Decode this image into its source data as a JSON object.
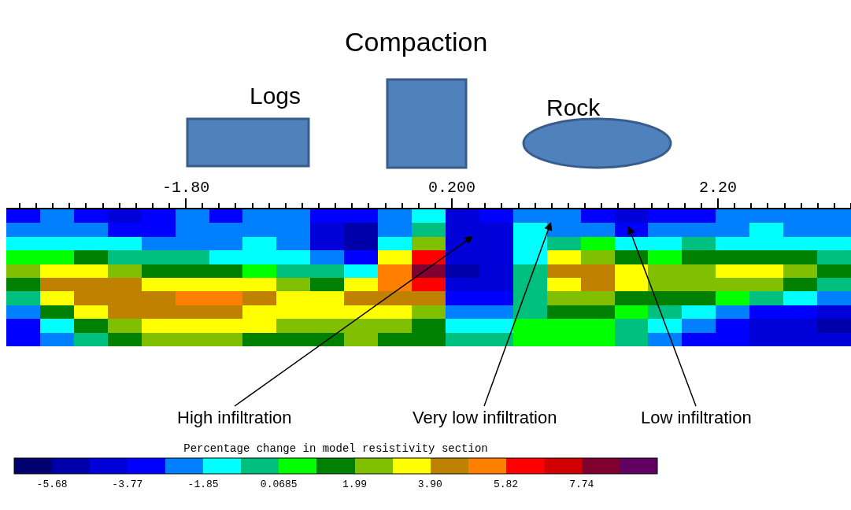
{
  "chart_data": {
    "type": "heatmap",
    "title": "Compaction",
    "annotations": [
      "Logs",
      "Rock",
      "High infiltration",
      "Very low infiltration",
      "Low infiltration"
    ],
    "clabel": "Percentage change in model resistivity section",
    "categories": [
      null,
      null,
      null,
      null,
      null,
      null,
      null,
      null,
      null,
      null,
      null,
      null,
      null,
      null,
      null,
      null,
      null,
      null,
      null,
      null,
      null,
      null,
      null,
      null,
      null
    ],
    "y_categories": [
      null,
      null,
      null,
      null,
      null,
      null,
      null,
      null,
      null,
      null
    ],
    "x2lim": [
      -3.15,
      3.2
    ],
    "x2ticks": [
      {
        "value": -3.05,
        "label": null
      },
      {
        "value": -2.925,
        "label": null
      },
      {
        "value": -2.8,
        "label": null
      },
      {
        "value": -2.675,
        "label": null
      },
      {
        "value": -2.55,
        "label": null
      },
      {
        "value": -2.425,
        "label": null
      },
      {
        "value": -2.3,
        "label": null
      },
      {
        "value": -2.175,
        "label": null
      },
      {
        "value": -2.05,
        "label": null
      },
      {
        "value": -1.925,
        "label": null
      },
      {
        "value": -1.8,
        "label": "-1.80"
      },
      {
        "value": -1.675,
        "label": null
      },
      {
        "value": -1.55,
        "label": null
      },
      {
        "value": -1.425,
        "label": null
      },
      {
        "value": -1.3,
        "label": null
      },
      {
        "value": -1.175,
        "label": null
      },
      {
        "value": -1.05,
        "label": null
      },
      {
        "value": -0.925,
        "label": null
      },
      {
        "value": -0.8,
        "label": null
      },
      {
        "value": -0.675,
        "label": null
      },
      {
        "value": -0.55,
        "label": null
      },
      {
        "value": -0.425,
        "label": null
      },
      {
        "value": -0.3,
        "label": null
      },
      {
        "value": -0.175,
        "label": null
      },
      {
        "value": -0.05,
        "label": null
      },
      {
        "value": 0.075,
        "label": null
      },
      {
        "value": 0.2,
        "label": "0.200"
      },
      {
        "value": 0.325,
        "label": null
      },
      {
        "value": 0.45,
        "label": null
      },
      {
        "value": 0.575,
        "label": null
      },
      {
        "value": 0.7,
        "label": null
      },
      {
        "value": 0.825,
        "label": null
      },
      {
        "value": 0.95,
        "label": null
      },
      {
        "value": 1.075,
        "label": null
      },
      {
        "value": 1.2,
        "label": null
      },
      {
        "value": 1.325,
        "label": null
      },
      {
        "value": 1.45,
        "label": null
      },
      {
        "value": 1.575,
        "label": null
      },
      {
        "value": 1.7,
        "label": null
      },
      {
        "value": 1.825,
        "label": null
      },
      {
        "value": 1.95,
        "label": null
      },
      {
        "value": 2.075,
        "label": null
      },
      {
        "value": 2.2,
        "label": "2.20"
      },
      {
        "value": 2.325,
        "label": null
      },
      {
        "value": 2.45,
        "label": null
      },
      {
        "value": 2.575,
        "label": null
      },
      {
        "value": 2.7,
        "label": null
      },
      {
        "value": 2.825,
        "label": null
      },
      {
        "value": 2.95,
        "label": null
      },
      {
        "value": 3.075,
        "label": null
      },
      {
        "value": 3.2,
        "label": null
      }
    ],
    "clim": [
      -6.64,
      9.66
    ],
    "cticks": [
      -5.68,
      -3.77,
      -1.85,
      0.0685,
      1.99,
      {
        "value": 3.9,
        "label": "3.90"
      },
      5.82,
      7.74
    ],
    "colors": [
      "#00006e",
      "#0000aa",
      "#0000d8",
      "#0000ff",
      "#0080ff",
      "#00ffff",
      "#00c080",
      "#00ff00",
      "#008000",
      "#80c000",
      "#ffff00",
      "#c08000",
      "#ff8000",
      "#ff0000",
      "#d00000",
      "#800030",
      "#600060"
    ],
    "cells": [
      [
        -3.29,
        -2.33,
        -3.29,
        -4.24,
        -3.29,
        -2.33,
        -3.29,
        -2.33,
        -2.33,
        -3.29,
        -3.29,
        -2.33,
        -1.37,
        -4.24,
        -3.29,
        -2.33,
        -2.33,
        -3.29,
        -4.24,
        -3.29,
        -3.29,
        -2.33,
        -2.33,
        -2.33,
        -2.33
      ],
      [
        -2.33,
        -2.33,
        -2.33,
        -3.29,
        -3.29,
        -2.33,
        -2.33,
        -2.33,
        -2.33,
        -4.24,
        -5.2,
        -2.33,
        -0.41,
        -4.24,
        -4.24,
        -1.37,
        -2.33,
        -2.33,
        -3.29,
        -2.33,
        -2.33,
        -2.33,
        -1.37,
        -2.33,
        -2.33
      ],
      [
        -1.37,
        -1.37,
        -1.37,
        -1.37,
        -2.33,
        -2.33,
        -2.33,
        -1.37,
        -2.33,
        -4.24,
        -5.2,
        -1.37,
        2.47,
        -4.24,
        -4.24,
        -1.37,
        -0.41,
        0.55,
        -1.37,
        -1.37,
        -0.41,
        -1.37,
        -1.37,
        -1.37,
        -1.37
      ],
      [
        0.55,
        0.55,
        1.51,
        -0.41,
        -0.41,
        -0.41,
        -1.37,
        -1.37,
        -1.37,
        -2.33,
        -3.29,
        3.43,
        6.3,
        -4.24,
        -4.24,
        -1.37,
        3.43,
        2.47,
        1.51,
        0.55,
        1.51,
        1.51,
        1.51,
        1.51,
        -0.41
      ],
      [
        2.47,
        3.43,
        3.43,
        2.47,
        1.51,
        1.51,
        1.51,
        0.55,
        -0.41,
        -0.41,
        -1.37,
        5.34,
        8.22,
        -5.2,
        -4.24,
        -0.41,
        4.38,
        4.38,
        3.43,
        2.47,
        2.47,
        3.43,
        3.43,
        2.47,
        1.51
      ],
      [
        1.51,
        4.38,
        4.38,
        4.38,
        3.43,
        3.43,
        3.43,
        3.43,
        2.47,
        1.51,
        3.43,
        5.34,
        6.3,
        -4.24,
        -4.24,
        -0.41,
        3.43,
        4.38,
        3.43,
        2.47,
        2.47,
        2.47,
        2.47,
        1.51,
        -0.41
      ],
      [
        -0.41,
        3.43,
        4.38,
        4.38,
        4.38,
        5.34,
        5.34,
        4.38,
        3.43,
        3.43,
        4.38,
        4.38,
        4.38,
        -3.29,
        -3.29,
        -0.41,
        2.47,
        2.47,
        1.51,
        1.51,
        1.51,
        0.55,
        -0.41,
        -1.37,
        -2.33
      ],
      [
        -2.33,
        1.51,
        3.43,
        4.38,
        4.38,
        4.38,
        4.38,
        3.43,
        3.43,
        3.43,
        3.43,
        3.43,
        2.47,
        -2.33,
        -2.33,
        -0.41,
        1.51,
        1.51,
        0.55,
        -0.41,
        -1.37,
        -2.33,
        -3.29,
        -3.29,
        -4.24
      ],
      [
        -3.29,
        -1.37,
        1.51,
        2.47,
        3.43,
        3.43,
        3.43,
        3.43,
        2.47,
        2.47,
        2.47,
        2.47,
        1.51,
        -1.37,
        -1.37,
        0.55,
        0.55,
        0.55,
        -0.41,
        -1.37,
        -2.33,
        -3.29,
        -4.24,
        -4.24,
        -5.2
      ],
      [
        -3.29,
        -2.33,
        -0.41,
        1.51,
        2.47,
        2.47,
        2.47,
        1.51,
        1.51,
        1.51,
        2.47,
        1.51,
        1.51,
        -0.41,
        -0.41,
        0.55,
        0.55,
        0.55,
        -0.41,
        -2.33,
        -3.29,
        -3.29,
        -4.24,
        -4.24,
        -4.24
      ]
    ]
  }
}
